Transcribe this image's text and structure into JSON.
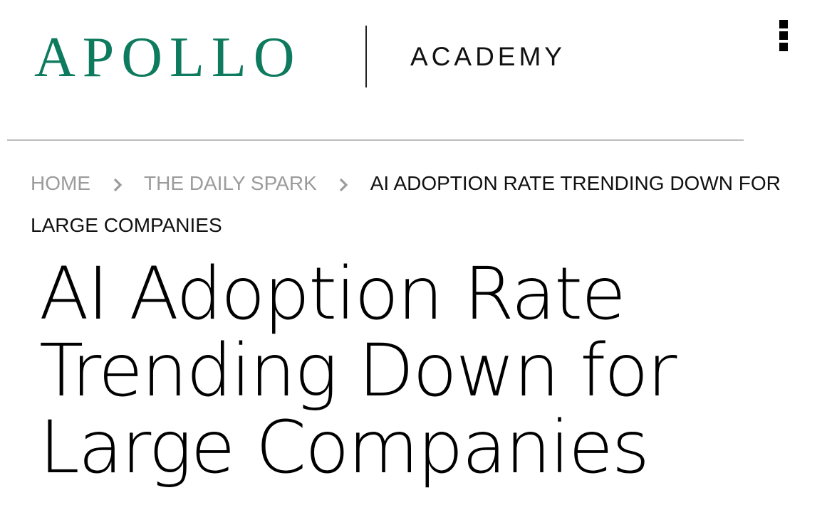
{
  "header": {
    "logo_primary": "APOLLO",
    "logo_secondary": "ACADEMY",
    "brand_color": "#0e7a5e",
    "menu_icon": "kebab-menu-icon"
  },
  "breadcrumb": {
    "home": "HOME",
    "section": "THE DAILY SPARK",
    "current": "AI ADOPTION RATE TRENDING DOWN FOR LARGE COMPANIES",
    "separator_icon": "chevron-right-icon"
  },
  "article": {
    "title": "AI Adoption Rate Trending Down for Large Companies"
  }
}
